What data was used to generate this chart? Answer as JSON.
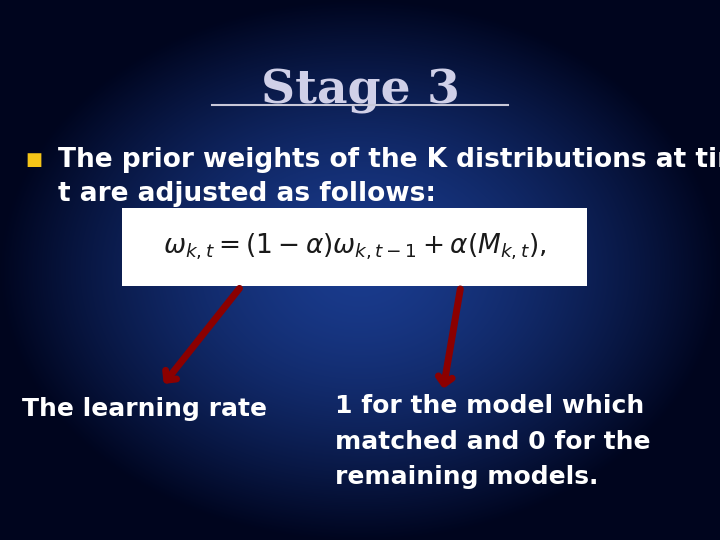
{
  "title": "Stage 3",
  "background_color": "#1a3a8c",
  "gradient_dark": "#000830",
  "gradient_mid": "#1a3a8c",
  "title_color": "#d0d0e8",
  "title_fontsize": 34,
  "bullet_color": "#f5c518",
  "bullet_text_line1": "The prior weights of the K distributions at time",
  "bullet_text_line2": "t are adjusted as follows:",
  "bullet_fontsize": 19,
  "formula": "$\\omega_{k,t} = (1 - \\alpha)\\omega_{k,t-1} + \\alpha(M_{k,t}),$",
  "formula_box_color": "#ffffff",
  "formula_fontsize": 19,
  "arrow_color": "#8b0000",
  "label_left": "The learning rate",
  "label_right": "1 for the model which\nmatched and 0 for the\nremaining models.",
  "label_fontsize": 18,
  "text_color": "#ffffff",
  "underline_color": "#c8c8d8"
}
